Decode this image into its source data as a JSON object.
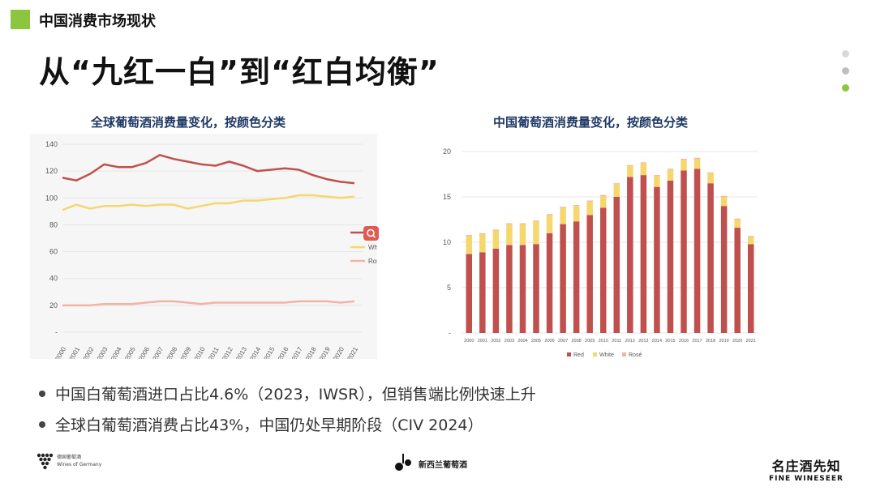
{
  "header": {
    "section_title": "中国消费市场现状",
    "main_title": "从“九红一白”到“红白均衡”"
  },
  "pager": {
    "dots": [
      "#d9d9d9",
      "#bfbfbf",
      "#8cc63f"
    ]
  },
  "colors": {
    "red": "#c0504d",
    "white": "#f5d76e",
    "rose": "#f2b3a3",
    "title_blue": "#1f3a64",
    "accent_green": "#8cc63f"
  },
  "chart_data": [
    {
      "type": "line",
      "title": "全球葡萄酒消费量变化，按颜色分类",
      "categories": [
        "2000",
        "2001",
        "2002",
        "2003",
        "2004",
        "2005",
        "2006",
        "2007",
        "2008",
        "2009",
        "2010",
        "2011",
        "2012",
        "2013",
        "2014",
        "2015",
        "2016",
        "2017",
        "2018",
        "2019",
        "2020",
        "2021"
      ],
      "y_ticks": [
        "140",
        "120",
        "100",
        "80",
        "60",
        "40",
        "20",
        "-"
      ],
      "ylim": [
        0,
        140
      ],
      "series": [
        {
          "name": "Red",
          "values": [
            115,
            113,
            118,
            125,
            123,
            123,
            126,
            132,
            129,
            127,
            125,
            124,
            127,
            124,
            120,
            121,
            122,
            121,
            117,
            114,
            112,
            111
          ]
        },
        {
          "name": "White",
          "values": [
            91,
            95,
            92,
            94,
            94,
            95,
            94,
            95,
            95,
            92,
            94,
            96,
            96,
            98,
            98,
            99,
            100,
            102,
            102,
            101,
            100,
            101
          ]
        },
        {
          "name": "Rosé",
          "values": [
            20,
            20,
            20,
            21,
            21,
            21,
            22,
            23,
            23,
            22,
            21,
            22,
            22,
            22,
            22,
            22,
            22,
            23,
            23,
            23,
            22,
            23
          ]
        }
      ]
    },
    {
      "type": "bar",
      "stacked": true,
      "title": "中国葡萄酒消费量变化，按颜色分类",
      "categories": [
        "2000",
        "2001",
        "2002",
        "2003",
        "2004",
        "2005",
        "2006",
        "2007",
        "2008",
        "2009",
        "2010",
        "2011",
        "2012",
        "2013",
        "2014",
        "2015",
        "2016",
        "2017",
        "2018",
        "2019",
        "2020",
        "2021"
      ],
      "y_ticks": [
        "20",
        "15",
        "10",
        "5",
        "-"
      ],
      "ylim": [
        0,
        20
      ],
      "series": [
        {
          "name": "Red",
          "values": [
            8.7,
            8.9,
            9.3,
            9.7,
            9.7,
            9.8,
            11.0,
            12.0,
            12.3,
            13.0,
            13.8,
            15.0,
            17.2,
            17.4,
            16.1,
            16.8,
            17.9,
            18.1,
            16.5,
            14.0,
            11.6,
            9.8
          ]
        },
        {
          "name": "White",
          "values": [
            2.0,
            2.0,
            2.0,
            2.3,
            2.3,
            2.5,
            2.0,
            1.8,
            1.7,
            1.5,
            1.3,
            1.4,
            1.2,
            1.3,
            1.2,
            1.2,
            1.2,
            1.1,
            1.1,
            1.0,
            0.9,
            0.8
          ]
        },
        {
          "name": "Rosé",
          "values": [
            0.1,
            0.1,
            0.1,
            0.1,
            0.1,
            0.1,
            0.1,
            0.1,
            0.1,
            0.1,
            0.1,
            0.1,
            0.1,
            0.1,
            0.1,
            0.1,
            0.1,
            0.1,
            0.1,
            0.1,
            0.1,
            0.1
          ]
        }
      ]
    }
  ],
  "bullets": [
    "中国白葡萄酒进口占比4.6%（2023，IWSR），但销售端比例快速上升",
    "全球白葡萄酒消费占比43%，中国仍处早期阶段（CIV 2024）"
  ],
  "footer": {
    "left_logo_line1": "德国葡萄酒",
    "left_logo_line2": "Wines of Germany",
    "mid_logo": "新西兰葡萄酒",
    "right_logo_cn": "名庄酒先知",
    "right_logo_en": "FINE WINESEER"
  }
}
